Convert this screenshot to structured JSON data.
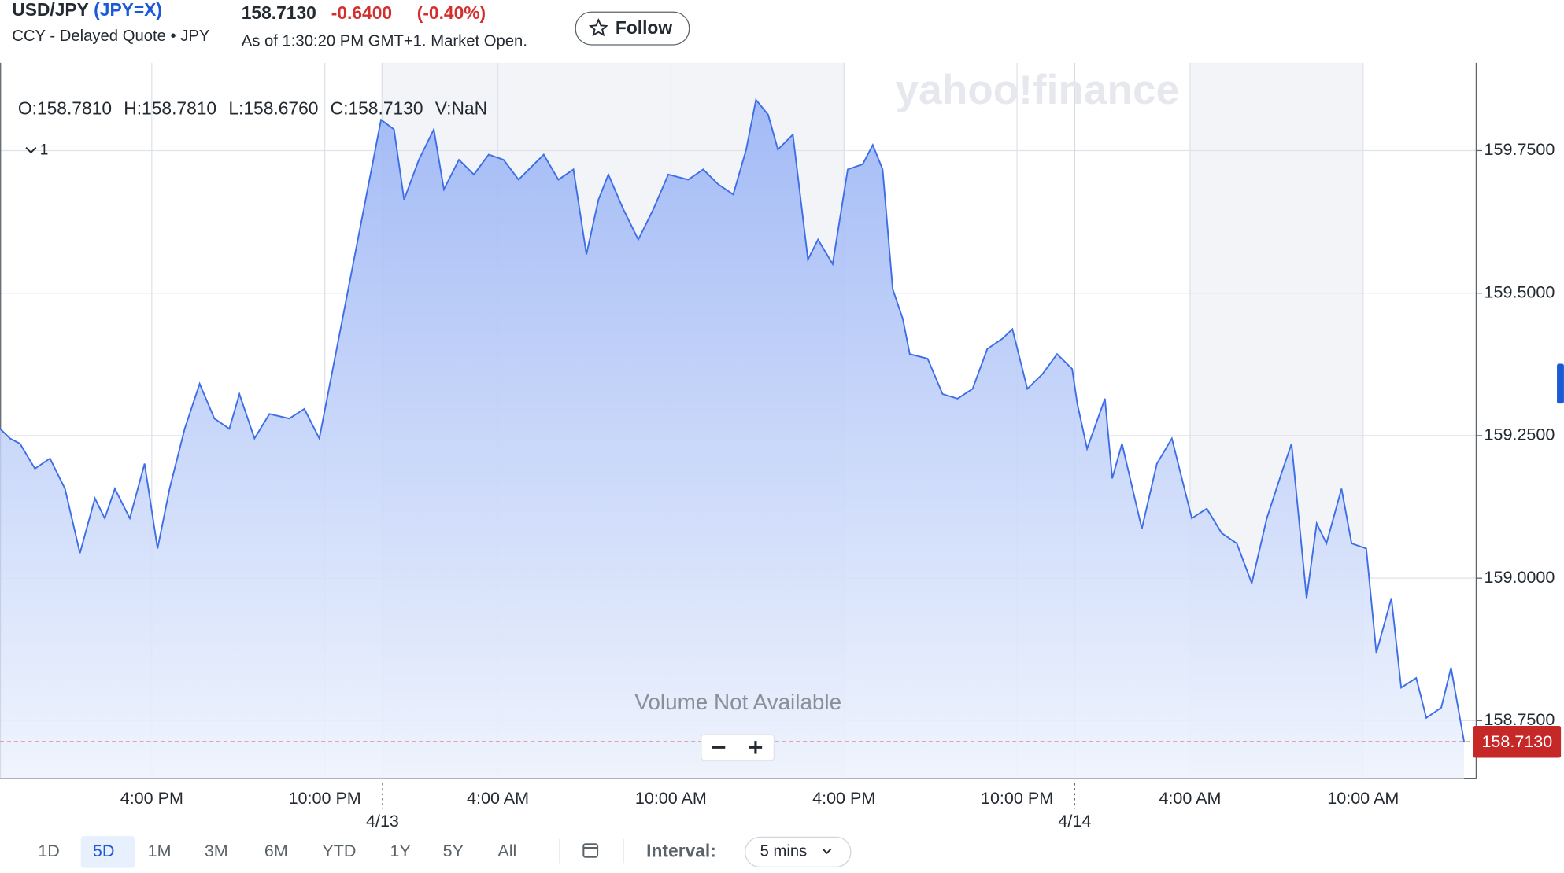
{
  "header": {
    "name": "USD/JPY",
    "ticker": "(JPY=X)",
    "subtitle": "CCY - Delayed Quote • JPY",
    "price": "158.7130",
    "change": "-0.6400",
    "change_pct": "(-0.40%)",
    "as_of": "As of 1:30:20 PM GMT+1. Market Open.",
    "follow": "Follow"
  },
  "ohlc": [
    "O:158.7810",
    "H:158.7810",
    "L:158.6760",
    "C:158.7130",
    "V:NaN"
  ],
  "indicator_count": "1",
  "watermark": "yahoo!finance",
  "volume_note": "Volume Not Available",
  "ranges": {
    "items": [
      "1D",
      "5D",
      "1M",
      "3M",
      "6M",
      "YTD",
      "1Y",
      "5Y",
      "All"
    ],
    "selected": "5D"
  },
  "interval": {
    "label": "Interval:",
    "value": "5 mins"
  },
  "chart_data": {
    "type": "area",
    "x": [
      10.74,
      11.09,
      11.43,
      11.95,
      12.47,
      12.99,
      13.51,
      14.03,
      14.37,
      14.72,
      15.24,
      15.75,
      16.2,
      16.62,
      17.14,
      17.66,
      18.17,
      18.69,
      19.04,
      19.56,
      20.08,
      20.77,
      21.29,
      21.81,
      23.95,
      24.4,
      24.75,
      25.26,
      25.78,
      26.13,
      26.65,
      27.17,
      27.68,
      28.2,
      28.72,
      29.59,
      30.1,
      30.62,
      31.07,
      31.49,
      31.83,
      32.35,
      32.87,
      33.39,
      33.91,
      34.6,
      35.12,
      35.64,
      36.16,
      36.61,
      36.95,
      37.37,
      37.71,
      38.23,
      38.75,
      39.1,
      39.61,
      40.13,
      40.65,
      41.0,
      41.34,
      41.69,
      42.04,
      42.28,
      42.9,
      43.42,
      43.94,
      44.46,
      44.97,
      45.49,
      45.84,
      46.36,
      46.88,
      47.39,
      47.91,
      48.09,
      48.43,
      49.05,
      49.3,
      49.64,
      50.33,
      50.85,
      51.37,
      52.06,
      52.58,
      53.1,
      53.62,
      54.14,
      54.66,
      55.17,
      55.52,
      56.04,
      56.39,
      56.73,
      57.25,
      57.6,
      58.11,
      58.46,
      58.98,
      59.32,
      59.84,
      60.19,
      60.71,
      61.05,
      61.5
    ],
    "series": [
      {
        "name": "USD/JPY",
        "color": "#3d6ee8",
        "values": [
          159.262,
          159.245,
          159.236,
          159.192,
          159.21,
          159.157,
          159.044,
          159.14,
          159.105,
          159.157,
          159.105,
          159.201,
          159.052,
          159.157,
          159.262,
          159.341,
          159.28,
          159.262,
          159.323,
          159.245,
          159.288,
          159.28,
          159.297,
          159.245,
          159.804,
          159.787,
          159.664,
          159.734,
          159.787,
          159.682,
          159.734,
          159.708,
          159.743,
          159.734,
          159.699,
          159.743,
          159.699,
          159.717,
          159.568,
          159.664,
          159.708,
          159.647,
          159.594,
          159.647,
          159.708,
          159.699,
          159.717,
          159.691,
          159.673,
          159.752,
          159.839,
          159.813,
          159.752,
          159.778,
          159.559,
          159.594,
          159.551,
          159.717,
          159.726,
          159.76,
          159.717,
          159.507,
          159.455,
          159.393,
          159.385,
          159.323,
          159.315,
          159.332,
          159.402,
          159.42,
          159.437,
          159.332,
          159.358,
          159.393,
          159.367,
          159.306,
          159.227,
          159.315,
          159.175,
          159.236,
          159.087,
          159.201,
          159.245,
          159.105,
          159.122,
          159.079,
          159.061,
          158.991,
          159.105,
          159.184,
          159.236,
          158.965,
          159.096,
          159.061,
          159.157,
          159.061,
          159.052,
          158.869,
          158.965,
          158.808,
          158.825,
          158.755,
          158.773,
          158.843,
          158.713
        ]
      }
    ],
    "xlim": [
      10.74,
      61.92
    ],
    "xticks": [
      {
        "value": 16,
        "label": "4:00 PM"
      },
      {
        "value": 22,
        "label": "10:00 PM"
      },
      {
        "value": 28,
        "label": "4:00 AM"
      },
      {
        "value": 34,
        "label": "10:00 AM"
      },
      {
        "value": 40,
        "label": "4:00 PM"
      },
      {
        "value": 46,
        "label": "10:00 PM"
      },
      {
        "value": 52,
        "label": "4:00 AM"
      },
      {
        "value": 58,
        "label": "10:00 AM"
      }
    ],
    "xdates": [
      {
        "value": 24,
        "label": "4/13"
      },
      {
        "value": 48,
        "label": "4/14"
      }
    ],
    "ylim": [
      158.649,
      159.904
    ],
    "yticks": [
      {
        "value": 158.75,
        "label": "158.7500"
      },
      {
        "value": 159,
        "label": "159.0000"
      },
      {
        "value": 159.25,
        "label": "159.2500"
      },
      {
        "value": 159.5,
        "label": "159.5000"
      },
      {
        "value": 159.75,
        "label": "159.7500"
      }
    ],
    "grid": true
  }
}
